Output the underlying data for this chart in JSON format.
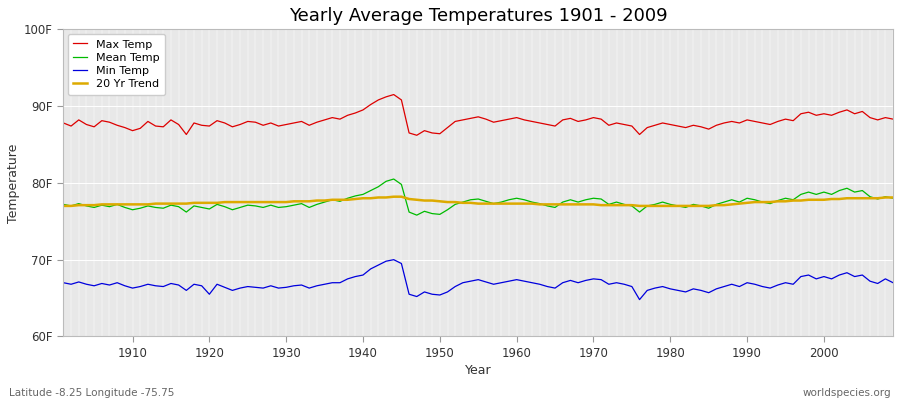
{
  "title": "Yearly Average Temperatures 1901 - 2009",
  "xlabel": "Year",
  "ylabel": "Temperature",
  "subtitle_left": "Latitude -8.25 Longitude -75.75",
  "subtitle_right": "worldspecies.org",
  "ylim": [
    60,
    100
  ],
  "xlim": [
    1901,
    2009
  ],
  "yticks": [
    60,
    70,
    80,
    90,
    100
  ],
  "ytick_labels": [
    "60F",
    "70F",
    "80F",
    "90F",
    "100F"
  ],
  "xticks": [
    1910,
    1920,
    1930,
    1940,
    1950,
    1960,
    1970,
    1980,
    1990,
    2000
  ],
  "fig_bg": "#ffffff",
  "plot_bg": "#e8e8e8",
  "grid_color": "#ffffff",
  "colors": {
    "max": "#dd0000",
    "mean": "#00bb00",
    "min": "#0000dd",
    "trend": "#ddaa00"
  },
  "legend_labels": [
    "Max Temp",
    "Mean Temp",
    "Min Temp",
    "20 Yr Trend"
  ],
  "years": [
    1901,
    1902,
    1903,
    1904,
    1905,
    1906,
    1907,
    1908,
    1909,
    1910,
    1911,
    1912,
    1913,
    1914,
    1915,
    1916,
    1917,
    1918,
    1919,
    1920,
    1921,
    1922,
    1923,
    1924,
    1925,
    1926,
    1927,
    1928,
    1929,
    1930,
    1931,
    1932,
    1933,
    1934,
    1935,
    1936,
    1937,
    1938,
    1939,
    1940,
    1941,
    1942,
    1943,
    1944,
    1945,
    1946,
    1947,
    1948,
    1949,
    1950,
    1951,
    1952,
    1953,
    1954,
    1955,
    1956,
    1957,
    1958,
    1959,
    1960,
    1961,
    1962,
    1963,
    1964,
    1965,
    1966,
    1967,
    1968,
    1969,
    1970,
    1971,
    1972,
    1973,
    1974,
    1975,
    1976,
    1977,
    1978,
    1979,
    1980,
    1981,
    1982,
    1983,
    1984,
    1985,
    1986,
    1987,
    1988,
    1989,
    1990,
    1991,
    1992,
    1993,
    1994,
    1995,
    1996,
    1997,
    1998,
    1999,
    2000,
    2001,
    2002,
    2003,
    2004,
    2005,
    2006,
    2007,
    2008,
    2009
  ],
  "max_temp": [
    87.8,
    87.4,
    88.2,
    87.6,
    87.3,
    88.1,
    87.9,
    87.5,
    87.2,
    86.8,
    87.1,
    88.0,
    87.4,
    87.3,
    88.2,
    87.6,
    86.3,
    87.8,
    87.5,
    87.4,
    88.1,
    87.8,
    87.3,
    87.6,
    88.0,
    87.9,
    87.5,
    87.8,
    87.4,
    87.6,
    87.8,
    88.0,
    87.5,
    87.9,
    88.2,
    88.5,
    88.3,
    88.8,
    89.1,
    89.5,
    90.2,
    90.8,
    91.2,
    91.5,
    90.8,
    86.5,
    86.2,
    86.8,
    86.5,
    86.4,
    87.2,
    88.0,
    88.2,
    88.4,
    88.6,
    88.3,
    87.9,
    88.1,
    88.3,
    88.5,
    88.2,
    88.0,
    87.8,
    87.6,
    87.4,
    88.2,
    88.4,
    88.0,
    88.2,
    88.5,
    88.3,
    87.5,
    87.8,
    87.6,
    87.4,
    86.3,
    87.2,
    87.5,
    87.8,
    87.6,
    87.4,
    87.2,
    87.5,
    87.3,
    87.0,
    87.5,
    87.8,
    88.0,
    87.8,
    88.2,
    88.0,
    87.8,
    87.6,
    88.0,
    88.3,
    88.1,
    89.0,
    89.2,
    88.8,
    89.0,
    88.8,
    89.2,
    89.5,
    89.0,
    89.3,
    88.5,
    88.2,
    88.5,
    88.3
  ],
  "mean_temp": [
    77.2,
    77.0,
    77.3,
    77.0,
    76.8,
    77.1,
    76.9,
    77.2,
    76.8,
    76.5,
    76.7,
    77.0,
    76.8,
    76.7,
    77.1,
    76.9,
    76.2,
    77.0,
    76.8,
    76.6,
    77.2,
    76.9,
    76.5,
    76.8,
    77.1,
    77.0,
    76.8,
    77.1,
    76.8,
    76.9,
    77.1,
    77.3,
    76.8,
    77.2,
    77.5,
    77.8,
    77.6,
    78.0,
    78.3,
    78.5,
    79.0,
    79.5,
    80.2,
    80.5,
    79.8,
    76.2,
    75.8,
    76.3,
    76.0,
    75.9,
    76.5,
    77.2,
    77.5,
    77.8,
    77.9,
    77.6,
    77.3,
    77.5,
    77.8,
    78.0,
    77.8,
    77.5,
    77.3,
    77.0,
    76.8,
    77.5,
    77.8,
    77.5,
    77.8,
    78.0,
    77.9,
    77.2,
    77.5,
    77.2,
    77.0,
    76.2,
    77.0,
    77.2,
    77.5,
    77.2,
    77.0,
    76.8,
    77.2,
    77.0,
    76.7,
    77.2,
    77.5,
    77.8,
    77.5,
    78.0,
    77.8,
    77.5,
    77.3,
    77.7,
    78.0,
    77.8,
    78.5,
    78.8,
    78.5,
    78.8,
    78.5,
    79.0,
    79.3,
    78.8,
    79.0,
    78.2,
    77.9,
    78.2,
    78.0
  ],
  "min_temp": [
    67.0,
    66.8,
    67.1,
    66.8,
    66.6,
    66.9,
    66.7,
    67.0,
    66.6,
    66.3,
    66.5,
    66.8,
    66.6,
    66.5,
    66.9,
    66.7,
    66.0,
    66.8,
    66.6,
    65.5,
    66.8,
    66.4,
    66.0,
    66.3,
    66.5,
    66.4,
    66.3,
    66.6,
    66.3,
    66.4,
    66.6,
    66.7,
    66.3,
    66.6,
    66.8,
    67.0,
    67.0,
    67.5,
    67.8,
    68.0,
    68.8,
    69.3,
    69.8,
    70.0,
    69.5,
    65.5,
    65.2,
    65.8,
    65.5,
    65.4,
    65.8,
    66.5,
    67.0,
    67.2,
    67.4,
    67.1,
    66.8,
    67.0,
    67.2,
    67.4,
    67.2,
    67.0,
    66.8,
    66.5,
    66.3,
    67.0,
    67.3,
    67.0,
    67.3,
    67.5,
    67.4,
    66.8,
    67.0,
    66.8,
    66.5,
    64.8,
    66.0,
    66.3,
    66.5,
    66.2,
    66.0,
    65.8,
    66.2,
    66.0,
    65.7,
    66.2,
    66.5,
    66.8,
    66.5,
    67.0,
    66.8,
    66.5,
    66.3,
    66.7,
    67.0,
    66.8,
    67.8,
    68.0,
    67.5,
    67.8,
    67.5,
    68.0,
    68.3,
    67.8,
    68.0,
    67.2,
    66.9,
    67.5,
    67.0
  ],
  "trend": [
    77.0,
    77.0,
    77.1,
    77.1,
    77.1,
    77.2,
    77.2,
    77.2,
    77.2,
    77.2,
    77.2,
    77.2,
    77.3,
    77.3,
    77.3,
    77.3,
    77.3,
    77.4,
    77.4,
    77.4,
    77.4,
    77.5,
    77.5,
    77.5,
    77.5,
    77.5,
    77.5,
    77.5,
    77.5,
    77.5,
    77.6,
    77.6,
    77.6,
    77.7,
    77.7,
    77.8,
    77.8,
    77.8,
    77.9,
    78.0,
    78.0,
    78.1,
    78.1,
    78.2,
    78.2,
    77.9,
    77.8,
    77.7,
    77.7,
    77.6,
    77.5,
    77.5,
    77.4,
    77.4,
    77.3,
    77.3,
    77.3,
    77.3,
    77.3,
    77.3,
    77.3,
    77.3,
    77.2,
    77.2,
    77.2,
    77.2,
    77.2,
    77.2,
    77.2,
    77.2,
    77.1,
    77.1,
    77.1,
    77.1,
    77.1,
    77.0,
    77.0,
    77.0,
    77.0,
    77.0,
    77.0,
    77.0,
    77.0,
    77.0,
    77.0,
    77.1,
    77.1,
    77.2,
    77.3,
    77.4,
    77.5,
    77.5,
    77.5,
    77.6,
    77.6,
    77.7,
    77.7,
    77.8,
    77.8,
    77.8,
    77.9,
    77.9,
    78.0,
    78.0,
    78.0,
    78.0,
    78.0,
    78.1,
    78.1
  ]
}
